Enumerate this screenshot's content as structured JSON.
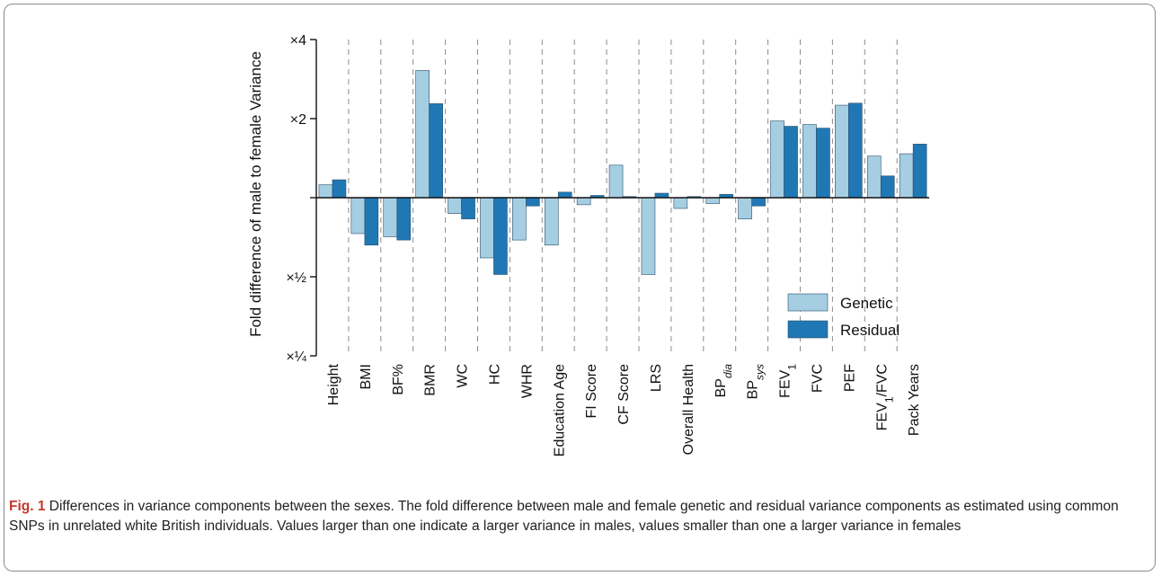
{
  "figure": {
    "label": "Fig. 1",
    "title": "Differences in variance components between the sexes.",
    "caption": "The fold difference between male and female genetic and residual variance components as estimated using common SNPs in unrelated white British individuals. Values larger than one indicate a larger variance in males, values smaller than one a larger variance in females"
  },
  "chart_data": {
    "type": "bar",
    "ylabel": "Fold difference of male to female Variance",
    "yscale": "log2",
    "ylim": [
      0.25,
      4
    ],
    "yticks": [
      0.25,
      0.5,
      2,
      4
    ],
    "ytick_labels": [
      "×¼",
      "×½",
      "×2",
      "×4"
    ],
    "grid": "vertical dashed separators between categories",
    "legend_position": "lower-right",
    "categories": [
      "Height",
      "BMI",
      "BF%",
      "BMR",
      "WC",
      "HC",
      "WHR",
      "Education Age",
      "FI Score",
      "CF Score",
      "LRS",
      "Overall Health",
      "BP_dia",
      "BP_sys",
      "FEV_1",
      "FVC",
      "PEF",
      "FEV_1/FVC",
      "Pack Years"
    ],
    "category_labels": [
      {
        "base": "Height"
      },
      {
        "base": "BMI"
      },
      {
        "base": "BF%"
      },
      {
        "base": "BMR"
      },
      {
        "base": "WC"
      },
      {
        "base": "HC"
      },
      {
        "base": "WHR"
      },
      {
        "base": "Education Age"
      },
      {
        "base": "FI Score"
      },
      {
        "base": "CF Score"
      },
      {
        "base": "LRS"
      },
      {
        "base": "Overall Health"
      },
      {
        "base": "BP",
        "sub": "dia",
        "sub_style": "italic"
      },
      {
        "base": "BP",
        "sub": "sys",
        "sub_style": "italic"
      },
      {
        "base": "FEV",
        "sub": "1"
      },
      {
        "base": "FVC"
      },
      {
        "base": "PEF"
      },
      {
        "base": "FEV",
        "sub": "1",
        "tail": "/FVC"
      },
      {
        "base": "Pack Years"
      }
    ],
    "series": [
      {
        "name": "Genetic",
        "color": "#a6cee3",
        "values": [
          1.12,
          0.73,
          0.71,
          3.05,
          0.87,
          0.59,
          0.69,
          0.66,
          0.94,
          1.33,
          0.51,
          0.91,
          0.95,
          0.83,
          1.96,
          1.9,
          2.25,
          1.44,
          1.47
        ]
      },
      {
        "name": "Residual",
        "color": "#1f78b4",
        "values": [
          1.17,
          0.66,
          0.69,
          2.28,
          0.83,
          0.51,
          0.93,
          1.05,
          1.02,
          1.01,
          1.04,
          1.01,
          1.03,
          0.93,
          1.87,
          1.84,
          2.29,
          1.21,
          1.6
        ]
      }
    ]
  }
}
